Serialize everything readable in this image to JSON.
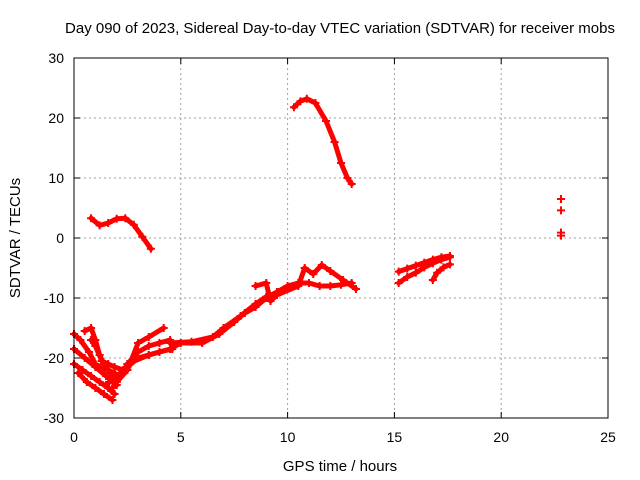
{
  "chart_data": {
    "type": "scatter",
    "title": "Day 090 of 2023, Sidereal Day-to-day VTEC variation (SDTVAR) for receiver mobs",
    "xlabel": "GPS time / hours",
    "ylabel": "SDTVAR / TECUs",
    "xlim": [
      0,
      25
    ],
    "ylim": [
      -30,
      30
    ],
    "xticks": [
      0,
      5,
      10,
      15,
      20,
      25
    ],
    "yticks": [
      -30,
      -20,
      -10,
      0,
      10,
      20,
      30
    ],
    "xtick_labels": [
      "0",
      "5",
      "10",
      "15",
      "20",
      "25"
    ],
    "ytick_labels": [
      "-30",
      "-20",
      "-10",
      "0",
      "10",
      "20",
      "30"
    ],
    "grid": true,
    "color": "#ff0000",
    "series": [
      {
        "name": "early-low-a",
        "x": [
          0.0,
          0.3,
          0.7,
          1.0,
          1.4
        ],
        "y": [
          -16,
          -17,
          -19,
          -21,
          -22
        ]
      },
      {
        "name": "early-low-b",
        "x": [
          0.0,
          0.5,
          1.0,
          1.5,
          2.0
        ],
        "y": [
          -18.5,
          -20,
          -21.5,
          -23,
          -24.5
        ]
      },
      {
        "name": "early-low-c",
        "x": [
          0.0,
          0.4,
          0.8,
          1.2,
          1.6,
          1.9
        ],
        "y": [
          -21,
          -22,
          -23,
          -24,
          -25,
          -26
        ]
      },
      {
        "name": "early-low-d",
        "x": [
          0.2,
          0.6,
          1.0,
          1.4,
          1.8
        ],
        "y": [
          -22.5,
          -24,
          -25,
          -26,
          -27
        ]
      },
      {
        "name": "early-rising-a",
        "x": [
          0.5,
          0.8,
          1.0,
          1.2,
          1.4,
          1.7,
          2.0
        ],
        "y": [
          -15.5,
          -15,
          -17,
          -19.5,
          -21,
          -22.5,
          -23.5
        ]
      },
      {
        "name": "early-rising-b",
        "x": [
          0.8,
          1.0,
          1.3,
          1.6,
          1.9
        ],
        "y": [
          -17,
          -18,
          -20.5,
          -22,
          -22.5
        ]
      },
      {
        "name": "mid-rise",
        "x": [
          1.8,
          2.0,
          2.5,
          3.0,
          3.5,
          4.0,
          4.5
        ],
        "y": [
          -25,
          -24,
          -21,
          -19,
          -18,
          -17.5,
          -17
        ]
      },
      {
        "name": "mid-rise-b",
        "x": [
          1.5,
          2.0,
          2.5,
          3.0,
          3.5,
          4.0,
          4.6
        ],
        "y": [
          -24.5,
          -23,
          -21.5,
          -20,
          -19.5,
          -19,
          -18.5
        ]
      },
      {
        "name": "mid-rise-c",
        "x": [
          2.0,
          2.5,
          3.0,
          3.5,
          4.2
        ],
        "y": [
          -24,
          -22,
          -17.5,
          -16.5,
          -15
        ]
      },
      {
        "name": "mid-rise-d",
        "x": [
          1.3,
          1.6,
          1.9,
          2.3
        ],
        "y": [
          -20.5,
          -21,
          -21.5,
          -22
        ]
      },
      {
        "name": "main-track",
        "x": [
          2.5,
          3.5,
          4.5,
          5.0,
          6.0,
          6.8,
          7.5,
          8.0,
          8.5,
          9.0,
          9.5,
          10.0,
          10.5,
          11.0,
          11.5,
          12.0,
          12.5,
          13.0
        ],
        "y": [
          -21,
          -19.5,
          -18.5,
          -17.5,
          -17.5,
          -16,
          -14,
          -12.5,
          -11.5,
          -10,
          -9,
          -8,
          -7.5,
          -7.5,
          -8,
          -8,
          -7.8,
          -7.5
        ]
      },
      {
        "name": "main-track-b",
        "x": [
          4.5,
          5.5,
          6.5,
          7.0,
          7.8,
          8.5,
          9.0,
          9.6,
          10.2
        ],
        "y": [
          -17.5,
          -17.3,
          -16.5,
          -15,
          -13,
          -11,
          -9.8,
          -9,
          -8.2
        ]
      },
      {
        "name": "evening-bumps",
        "x": [
          8.5,
          9.0,
          9.2,
          9.5,
          10.5,
          10.8,
          11.2,
          11.6,
          12.0,
          12.6,
          13.2
        ],
        "y": [
          -8,
          -7.5,
          -10.5,
          -9.5,
          -8,
          -5,
          -6,
          -4.5,
          -5.5,
          -7,
          -8.5
        ]
      },
      {
        "name": "positive-start",
        "x": [
          0.8,
          1.2,
          1.6,
          2.0,
          2.4,
          2.8,
          3.2,
          3.6
        ],
        "y": [
          3.3,
          2.1,
          2.5,
          3.2,
          3.3,
          2.2,
          0.2,
          -1.8
        ]
      },
      {
        "name": "positive-peak",
        "x": [
          10.3,
          10.6,
          10.9,
          11.3,
          11.8,
          12.2,
          12.5,
          12.8,
          13.0
        ],
        "y": [
          21.8,
          22.8,
          23.2,
          22.5,
          19.5,
          16,
          12.5,
          10,
          9
        ]
      },
      {
        "name": "late-cluster-a",
        "x": [
          15.2,
          15.6,
          16.0,
          16.4,
          16.8,
          17.2,
          17.6
        ],
        "y": [
          -7.5,
          -6.5,
          -5.8,
          -4.9,
          -4.2,
          -3.6,
          -3.2
        ]
      },
      {
        "name": "late-cluster-b",
        "x": [
          15.2,
          15.6,
          16.0,
          16.4,
          16.8,
          17.2,
          17.6
        ],
        "y": [
          -5.6,
          -5.1,
          -4.6,
          -4.1,
          -3.6,
          -3.2,
          -3.0
        ]
      },
      {
        "name": "late-cluster-c",
        "x": [
          16.8,
          17.0,
          17.3,
          17.6
        ],
        "y": [
          -7.0,
          -5.8,
          -4.9,
          -4.4
        ]
      },
      {
        "name": "late-points",
        "x": [
          22.8,
          22.8,
          22.8,
          22.8
        ],
        "y": [
          6.5,
          4.6,
          0.9,
          0.4
        ]
      }
    ]
  }
}
